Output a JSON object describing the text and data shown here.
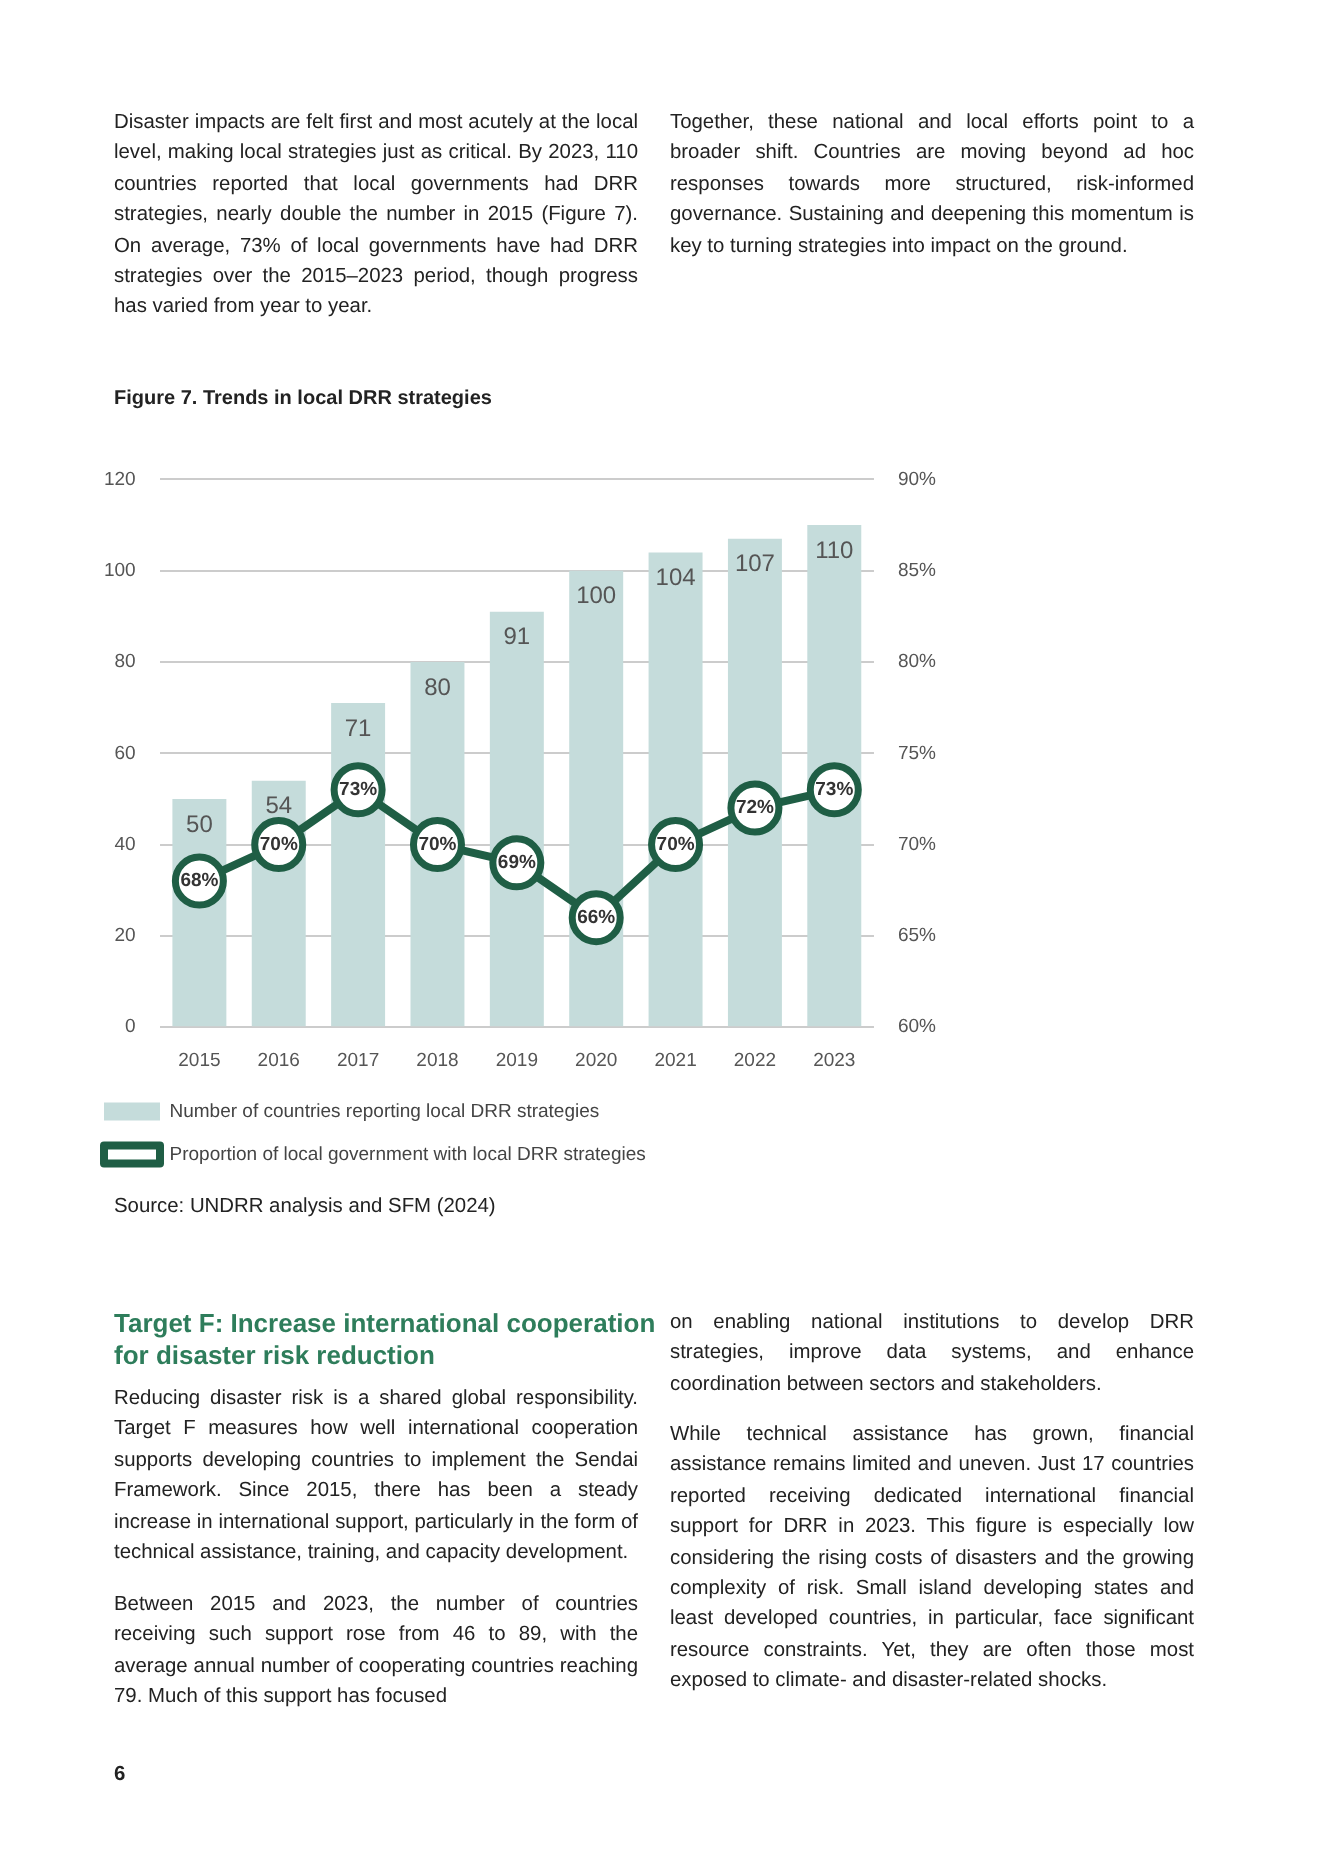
{
  "chart_data": {
    "type": "bar",
    "title": "Figure 7. Trends in local DRR strategies",
    "categories": [
      "2015",
      "2016",
      "2017",
      "2018",
      "2019",
      "2020",
      "2021",
      "2022",
      "2023"
    ],
    "series": [
      {
        "name": "Number of countries reporting local DRR strategies",
        "color": "#c5dcdb",
        "values": [
          50,
          54,
          71,
          80,
          91,
          100,
          104,
          107,
          110
        ]
      },
      {
        "name": "Proportion of local government with local DRR strategies",
        "type": "line",
        "axis": "y2",
        "color": "#1f5e45",
        "values": [
          68,
          70,
          73,
          70,
          69,
          66,
          70,
          72,
          73
        ],
        "value_labels": [
          "68%",
          "70%",
          "73%",
          "70%",
          "69%",
          "66%",
          "70%",
          "72%",
          "73%"
        ]
      }
    ],
    "ylim": [
      0,
      120
    ],
    "yticks": [
      0,
      20,
      40,
      60,
      80,
      100,
      120
    ],
    "y2lim": [
      60,
      90
    ],
    "y2ticks": [
      {
        "value": 60,
        "label": "60%"
      },
      {
        "value": 65,
        "label": "65%"
      },
      {
        "value": 70,
        "label": "70%"
      },
      {
        "value": 75,
        "label": "75%"
      },
      {
        "value": 80,
        "label": "80%"
      },
      {
        "value": 85,
        "label": "85%"
      },
      {
        "value": 90,
        "label": "90%"
      }
    ],
    "grid": "y",
    "legend": "bottom",
    "marker": "circle",
    "data_labels": true,
    "annotations": [
      "Disaster impacts are felt first and most acutely at the local level, making local strategies just as critical. By 2023, 110 countries reported that local governments had DRR strategies, nearly double the number in 2015 (Figure 7). On average, 73% of local governments have had DRR strategies over the 2015–2023 period, though progress has varied from year to year.",
      "Together, these national and local efforts point to a broader shift. Countries are moving beyond ad hoc responses towards more structured, risk-informed governance. Sustaining and deepening this momentum is key to turning strategies into impact on the ground.",
      "Source: UNDRR analysis and SFM (2024)",
      "Target F: Increase international cooperation for disaster risk reduction",
      "Reducing disaster risk is a shared global responsibility. Target F measures how well international cooperation supports developing countries to implement the Sendai Framework. Since 2015, there has been a steady increase in international support, particularly in the form of technical assistance, training, and capacity development.",
      "Between 2015 and 2023, the number of countries receiving such support rose from 46 to 89, with the average annual number of cooperating countries reaching 79. Much of this support has focused",
      "on enabling national institutions to develop DRR strategies, improve data systems, and enhance coordination between sectors and stakeholders.",
      "While technical assistance has grown, financial assistance remains limited and uneven. Just 17 countries reported receiving dedicated international financial support for DRR in 2023. This figure is especially low considering the rising costs of disasters and the growing complexity of risk. Small island developing states and least developed countries, in particular, face significant resource constraints. Yet, they are often those most exposed to climate- and disaster-related shocks.",
      "6"
    ]
  }
}
